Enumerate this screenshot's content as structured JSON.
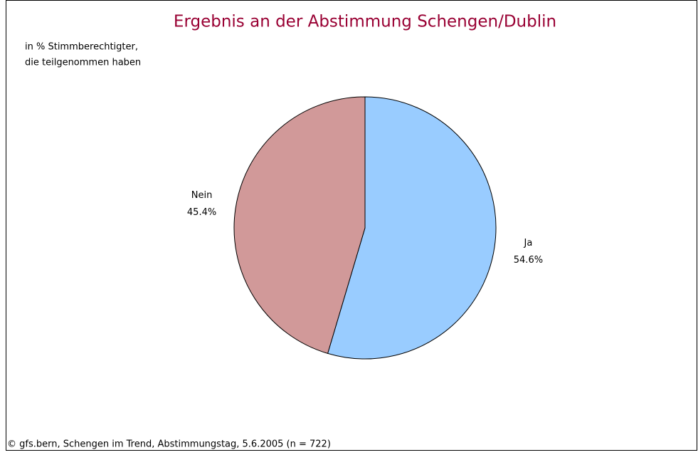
{
  "chart_data": {
    "type": "pie",
    "title": "Ergebnis an der Abstimmung Schengen/Dublin",
    "subtitle": [
      "in % Stimmberechtigter,",
      "die teilgenommen haben"
    ],
    "source": "© gfs.bern, Schengen im Trend, Abstimmungstag, 5.6.2005 (n = 722)",
    "categories": [
      "Ja",
      "Nein"
    ],
    "values": [
      54.6,
      45.4
    ],
    "value_labels": [
      "54.6%",
      "45.4%"
    ],
    "colors": [
      "#99ccff",
      "#d19999"
    ]
  }
}
